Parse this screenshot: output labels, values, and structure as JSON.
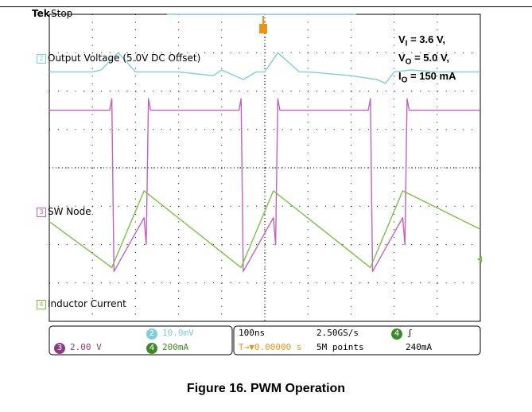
{
  "header": {
    "brand": "Tek",
    "state": "Stop"
  },
  "chart_data": {
    "type": "line",
    "title": "",
    "xlabel": "",
    "ylabel": "",
    "time_per_div_ns": 100,
    "divisions_x": 10,
    "divisions_y": 8,
    "grid": true,
    "series": [
      {
        "name": "Output Voltage (5.0V DC Offset)",
        "channel": "2",
        "color": "#7dcfd8",
        "x": [
          0,
          1,
          1.2,
          1.6,
          2,
          3,
          3.8,
          4,
          4.5,
          4.8,
          5,
          5.3,
          5.8,
          6,
          7,
          7.6,
          7.8,
          8,
          8.4,
          9,
          10
        ],
        "y": [
          2.5,
          2.5,
          2.55,
          3.0,
          2.5,
          2.5,
          2.4,
          2.55,
          2.3,
          2.5,
          2.5,
          3.0,
          2.5,
          2.5,
          2.4,
          2.3,
          2.2,
          2.5,
          2.55,
          2.5,
          2.5
        ]
      },
      {
        "name": "SW Node",
        "channel": "3",
        "color": "#c45fc0",
        "x": [
          0,
          1.4,
          1.45,
          1.5,
          2.2,
          2.25,
          2.3,
          2.35,
          4.4,
          4.45,
          4.5,
          5.2,
          5.25,
          5.3,
          5.35,
          7.4,
          7.45,
          7.5,
          8.2,
          8.25,
          8.3,
          8.35,
          10
        ],
        "y": [
          1.5,
          1.5,
          1.8,
          -2.7,
          -1.3,
          -2.0,
          1.8,
          1.5,
          1.5,
          1.8,
          -2.7,
          -1.3,
          -2.0,
          1.8,
          1.5,
          1.5,
          1.8,
          -2.7,
          -1.3,
          -2.0,
          1.8,
          1.5,
          1.5
        ]
      },
      {
        "name": "Inductor Current",
        "channel": "4",
        "color": "#7ac143",
        "x": [
          0,
          1.45,
          2.2,
          4.45,
          5.2,
          7.45,
          8.2,
          10
        ],
        "y": [
          -1.4,
          -2.6,
          -0.6,
          -2.6,
          -0.6,
          -2.6,
          -0.6,
          -1.6
        ]
      }
    ],
    "annotations": [
      {
        "label": "V",
        "sub": "I",
        "value": " = 3.6 V,"
      },
      {
        "label": "V",
        "sub": "O",
        "value": " = 5.0 V,"
      },
      {
        "label": "I",
        "sub": "O",
        "value": " = 150 mA"
      }
    ]
  },
  "status": {
    "ch2_scale": "10.0mV",
    "ch3_scale": "2.00 V",
    "ch4_scale": "200mA",
    "timebase": "100ns",
    "trigger_pos": "0.00000 s",
    "sample_rate": "2.50GS/s",
    "record_length": "5M points",
    "trigger_level": "240mA",
    "ch2_num": "2",
    "ch3_num": "3",
    "ch4_num": "4"
  },
  "caption": "Figure 16. PWM Operation"
}
